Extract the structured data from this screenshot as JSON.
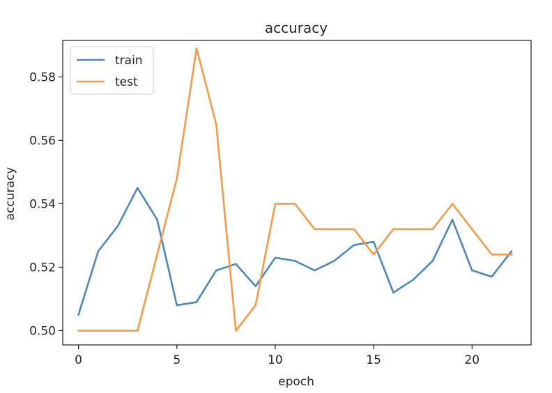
{
  "chart_data": {
    "type": "line",
    "title": "accuracy",
    "xlabel": "epoch",
    "ylabel": "accuracy",
    "xlim": [
      -0.8,
      23.0
    ],
    "ylim": [
      0.4955,
      0.5915
    ],
    "xticks": [
      0,
      5,
      10,
      15,
      20
    ],
    "yticks": [
      0.5,
      0.52,
      0.54,
      0.56,
      0.58
    ],
    "ytick_labels": [
      "0.50",
      "0.52",
      "0.54",
      "0.56",
      "0.58"
    ],
    "legend_position": "upper-left",
    "grid": false,
    "x": [
      0,
      1,
      2,
      3,
      4,
      5,
      6,
      7,
      8,
      9,
      10,
      11,
      12,
      13,
      14,
      15,
      16,
      17,
      18,
      19,
      20,
      21,
      22
    ],
    "series": [
      {
        "name": "train",
        "color": "#4c88bf",
        "values": [
          0.505,
          0.525,
          0.533,
          0.545,
          0.535,
          0.508,
          0.509,
          0.519,
          0.521,
          0.514,
          0.523,
          0.522,
          0.519,
          0.522,
          0.527,
          0.528,
          0.512,
          0.516,
          0.522,
          0.535,
          0.519,
          0.517,
          0.525
        ]
      },
      {
        "name": "test",
        "color": "#f59a48",
        "values": [
          0.5,
          0.5,
          0.5,
          0.5,
          0.524,
          0.548,
          0.589,
          0.565,
          0.5,
          0.508,
          0.54,
          0.54,
          0.532,
          0.532,
          0.532,
          0.524,
          0.532,
          0.532,
          0.532,
          0.54,
          0.532,
          0.524,
          0.524
        ]
      }
    ]
  }
}
